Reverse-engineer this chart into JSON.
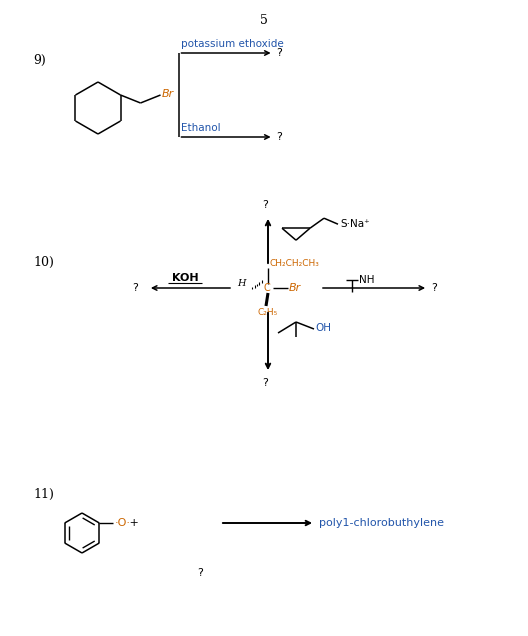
{
  "title_number": "5",
  "bg_color": "#ffffff",
  "text_color": "#000000",
  "orange_color": "#cc6600",
  "blue_color": "#2255aa",
  "section9_label": "9)",
  "section10_label": "10)",
  "section11_label": "11)",
  "potassium_ethoxide": "potassium ethoxide",
  "ethanol": "Ethanol",
  "KOH": "KOH",
  "SNa": "S·Na⁺",
  "NH": "NH",
  "OH": "OH",
  "Br_color": "#cc6600",
  "poly_text": "poly1-chlorobuthylene",
  "question_mark": "?",
  "figw": 5.28,
  "figh": 6.36,
  "dpi": 100
}
